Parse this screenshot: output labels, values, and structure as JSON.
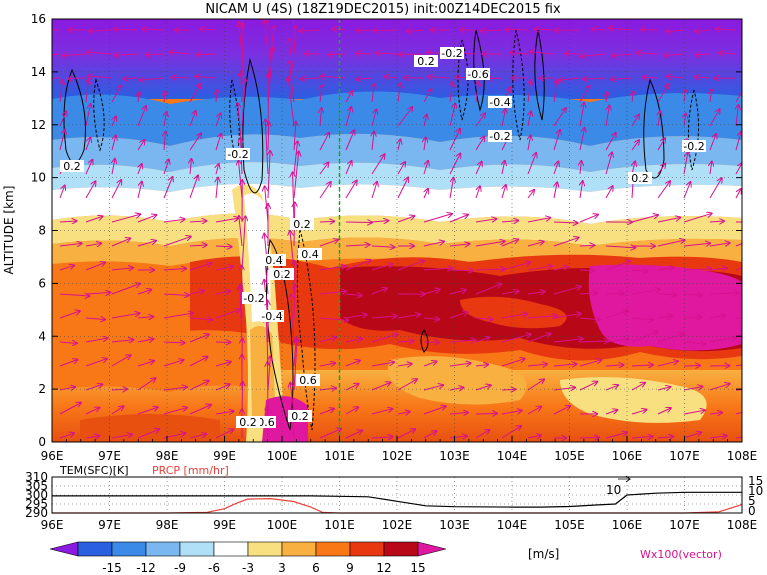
{
  "title": "NICAM U (4S) (18Z19DEC2015) init:00Z14DEC2015 fix",
  "main_panel": {
    "ylabel": "ALTITUDE [km]",
    "x_ticks": [
      "96E",
      "97E",
      "98E",
      "99E",
      "100E",
      "101E",
      "102E",
      "103E",
      "104E",
      "105E",
      "106E",
      "107E",
      "108E"
    ],
    "y_ticks": [
      "0",
      "2",
      "4",
      "6",
      "8",
      "10",
      "12",
      "14",
      "16"
    ]
  },
  "bottom_panel": {
    "tem_label": "TEM(SFC)[K]",
    "prcp_label": "PRCP [mm/hr]",
    "left_ticks": [
      "310",
      "305",
      "300",
      "295",
      "290"
    ],
    "right_ticks": [
      "15",
      "10",
      "5",
      "0"
    ],
    "x_ticks": [
      "96E",
      "97E",
      "98E",
      "99E",
      "100E",
      "101E",
      "102E",
      "103E",
      "104E",
      "105E",
      "106E",
      "107E",
      "108E"
    ],
    "annotation": "10"
  },
  "colorbar": {
    "labels": [
      "-15",
      "-12",
      "-9",
      "-6",
      "-3",
      "3",
      "6",
      "9",
      "12",
      "15"
    ],
    "unit": "[m/s]",
    "colors": [
      "#8a1ae0",
      "#2a5fe0",
      "#3c8ae8",
      "#7ab6f0",
      "#b0e0f8",
      "#ffffff",
      "#f8e080",
      "#f8b040",
      "#f87818",
      "#e83810",
      "#b80818",
      "#e018a0"
    ]
  },
  "vector_label": "Wx100(vector)",
  "chart_data": [
    {
      "type": "heatmap",
      "title": "NICAM U (4S) (18Z19DEC2015) init:00Z14DEC2015 fix",
      "xlabel": "",
      "ylabel": "ALTITUDE [km]",
      "xlim": [
        96,
        108
      ],
      "ylim": [
        0,
        16
      ],
      "variable": "U",
      "unit": "m/s",
      "levels": [
        -15,
        -12,
        -9,
        -6,
        -3,
        3,
        6,
        9,
        12,
        15
      ],
      "contour_labels": [
        "0.2",
        "-0.2",
        "0.2",
        "-0.2",
        "-0.6",
        "-0.4",
        "-0.2",
        "-0.2",
        "0.2",
        "0.2",
        "0.4",
        "0.2",
        "0.4",
        "-0.2",
        "-0.4",
        "0.6",
        "0.2",
        "-0.6",
        "0.2"
      ],
      "overlay": "Wx100(vector)",
      "marker_lon": 101
    },
    {
      "type": "line",
      "xlim": [
        96,
        108
      ],
      "series": [
        {
          "name": "TEM(SFC)[K]",
          "axis": "left",
          "ylim": [
            290,
            310
          ],
          "x": [
            96,
            97,
            98,
            99,
            99.5,
            100,
            100.5,
            101,
            101.5,
            102,
            102.5,
            103,
            104,
            104.5,
            105,
            105.5,
            105.8,
            106,
            106.5,
            107,
            108
          ],
          "y": [
            299.5,
            299.5,
            299.5,
            299.5,
            299.5,
            299.5,
            299.5,
            299.3,
            299,
            296.5,
            294,
            293.5,
            293.3,
            293.3,
            293.6,
            294.5,
            295,
            300,
            301,
            301.5,
            301.5
          ]
        },
        {
          "name": "PRCP [mm/hr]",
          "axis": "right",
          "ylim": [
            0,
            15
          ],
          "x": [
            96,
            98,
            98.7,
            99,
            99.2,
            99.4,
            99.8,
            100.2,
            100.5,
            100.7,
            101,
            104,
            107,
            107.6,
            108
          ],
          "y": [
            0,
            0,
            0.3,
            1.8,
            4,
            5.8,
            6,
            4.8,
            2.5,
            0.3,
            0,
            0,
            0,
            0.5,
            3.5
          ]
        }
      ],
      "x_ticks": [
        "96E",
        "97E",
        "98E",
        "99E",
        "100E",
        "101E",
        "102E",
        "103E",
        "104E",
        "105E",
        "106E",
        "107E",
        "108E"
      ]
    }
  ]
}
